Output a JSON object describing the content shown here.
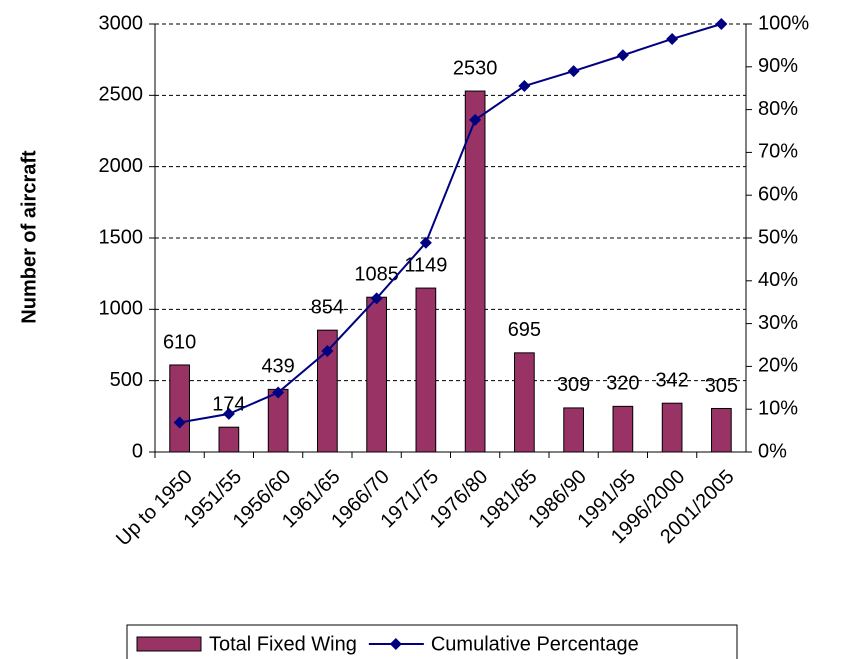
{
  "chart_data": {
    "type": "bar-line",
    "y_label": "Number of aircraft",
    "categories": [
      "Up to 1950",
      "1951/55",
      "1956/60",
      "1961/65",
      "1966/70",
      "1971/75",
      "1976/80",
      "1981/85",
      "1986/90",
      "1991/95",
      "1996/2000",
      "2001/2005"
    ],
    "series": [
      {
        "name": "Total Fixed Wing",
        "type": "bar",
        "color": "#993366",
        "values": [
          610,
          174,
          439,
          854,
          1085,
          1149,
          2530,
          695,
          309,
          320,
          342,
          305
        ]
      },
      {
        "name": "Cumulative Percentage",
        "type": "line",
        "axis": "y2",
        "color": "#000080",
        "values": [
          6.9,
          8.9,
          13.9,
          23.6,
          35.9,
          48.9,
          77.6,
          85.5,
          89.0,
          92.7,
          96.5,
          100
        ]
      }
    ],
    "ylim": [
      0,
      3000
    ],
    "yticks": [
      0,
      500,
      1000,
      1500,
      2000,
      2500,
      3000
    ],
    "y2lim": [
      0,
      100
    ],
    "y2ticks": [
      {
        "value": 0,
        "label": "0%"
      },
      {
        "value": 10,
        "label": "10%"
      },
      {
        "value": 20,
        "label": "20%"
      },
      {
        "value": 30,
        "label": "30%"
      },
      {
        "value": 40,
        "label": "40%"
      },
      {
        "value": 50,
        "label": "50%"
      },
      {
        "value": 60,
        "label": "60%"
      },
      {
        "value": 70,
        "label": "70%"
      },
      {
        "value": 80,
        "label": "80%"
      },
      {
        "value": 90,
        "label": "90%"
      },
      {
        "value": 100,
        "label": "100%"
      }
    ],
    "grid": true,
    "legend": "bottom"
  }
}
